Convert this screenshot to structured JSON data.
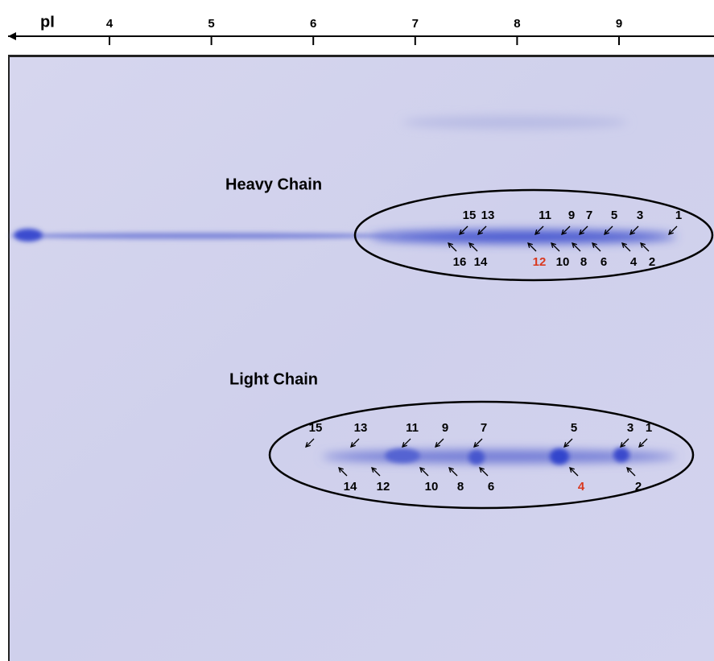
{
  "axis": {
    "label": "pI",
    "ticks": [
      4,
      5,
      6,
      7,
      8,
      9
    ]
  },
  "groups": [
    {
      "title": "Heavy Chain",
      "spots_top": [
        {
          "label": "15"
        },
        {
          "label": "13"
        },
        {
          "label": "11"
        },
        {
          "label": "9"
        },
        {
          "label": "7"
        },
        {
          "label": "5"
        },
        {
          "label": "3"
        },
        {
          "label": "1"
        }
      ],
      "spots_bottom": [
        {
          "label": "16"
        },
        {
          "label": "14"
        },
        {
          "label": "12",
          "color": "#d9381e"
        },
        {
          "label": "10"
        },
        {
          "label": "8"
        },
        {
          "label": "6"
        },
        {
          "label": "4"
        },
        {
          "label": "2"
        }
      ]
    },
    {
      "title": "Light Chain",
      "spots_top": [
        {
          "label": "15"
        },
        {
          "label": "13"
        },
        {
          "label": "11"
        },
        {
          "label": "9"
        },
        {
          "label": "7"
        },
        {
          "label": "5"
        },
        {
          "label": "3"
        },
        {
          "label": "1"
        }
      ],
      "spots_bottom": [
        {
          "label": "14"
        },
        {
          "label": "12"
        },
        {
          "label": "10"
        },
        {
          "label": "8"
        },
        {
          "label": "6"
        },
        {
          "label": "4",
          "color": "#d9381e"
        },
        {
          "label": "2"
        }
      ]
    }
  ]
}
